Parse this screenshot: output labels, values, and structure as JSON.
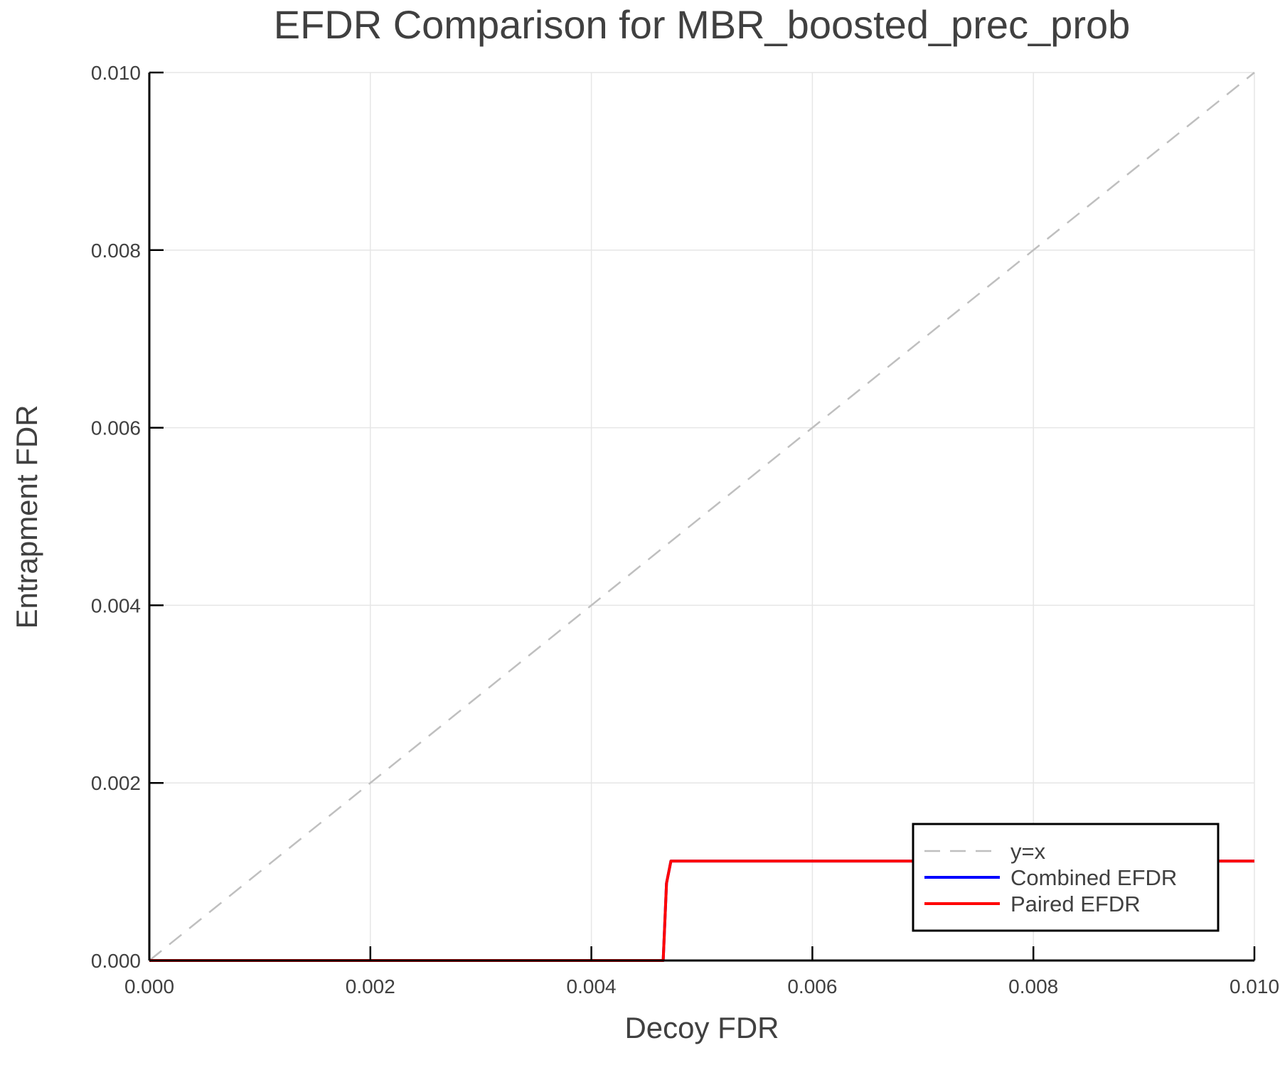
{
  "chart_data": {
    "type": "line",
    "title": "EFDR Comparison for MBR_boosted_prec_prob",
    "xlabel": "Decoy FDR",
    "ylabel": "Entrapment FDR",
    "xlim": [
      0,
      0.01
    ],
    "ylim": [
      0,
      0.01
    ],
    "xticks": [
      "0.000",
      "0.002",
      "0.004",
      "0.006",
      "0.008",
      "0.010"
    ],
    "yticks": [
      "0.000",
      "0.002",
      "0.004",
      "0.006",
      "0.008",
      "0.010"
    ],
    "grid": true,
    "legend_position": "bottom-right",
    "series": [
      {
        "name": "y=x",
        "color": "#bfbfbf",
        "dash": true,
        "x": [
          0,
          0.01
        ],
        "y": [
          0,
          0.01
        ]
      },
      {
        "name": "Combined EFDR",
        "color": "#0000ff",
        "dash": false,
        "x": [
          0,
          0.00465,
          0.00468,
          0.00472,
          0.01
        ],
        "y": [
          0,
          0,
          0.00087,
          0.00112,
          0.00112
        ]
      },
      {
        "name": "Paired EFDR",
        "color": "#ff0000",
        "dash": false,
        "x": [
          0,
          0.00465,
          0.00468,
          0.00472,
          0.01
        ],
        "y": [
          0,
          0,
          0.00087,
          0.00112,
          0.00112
        ]
      }
    ]
  }
}
